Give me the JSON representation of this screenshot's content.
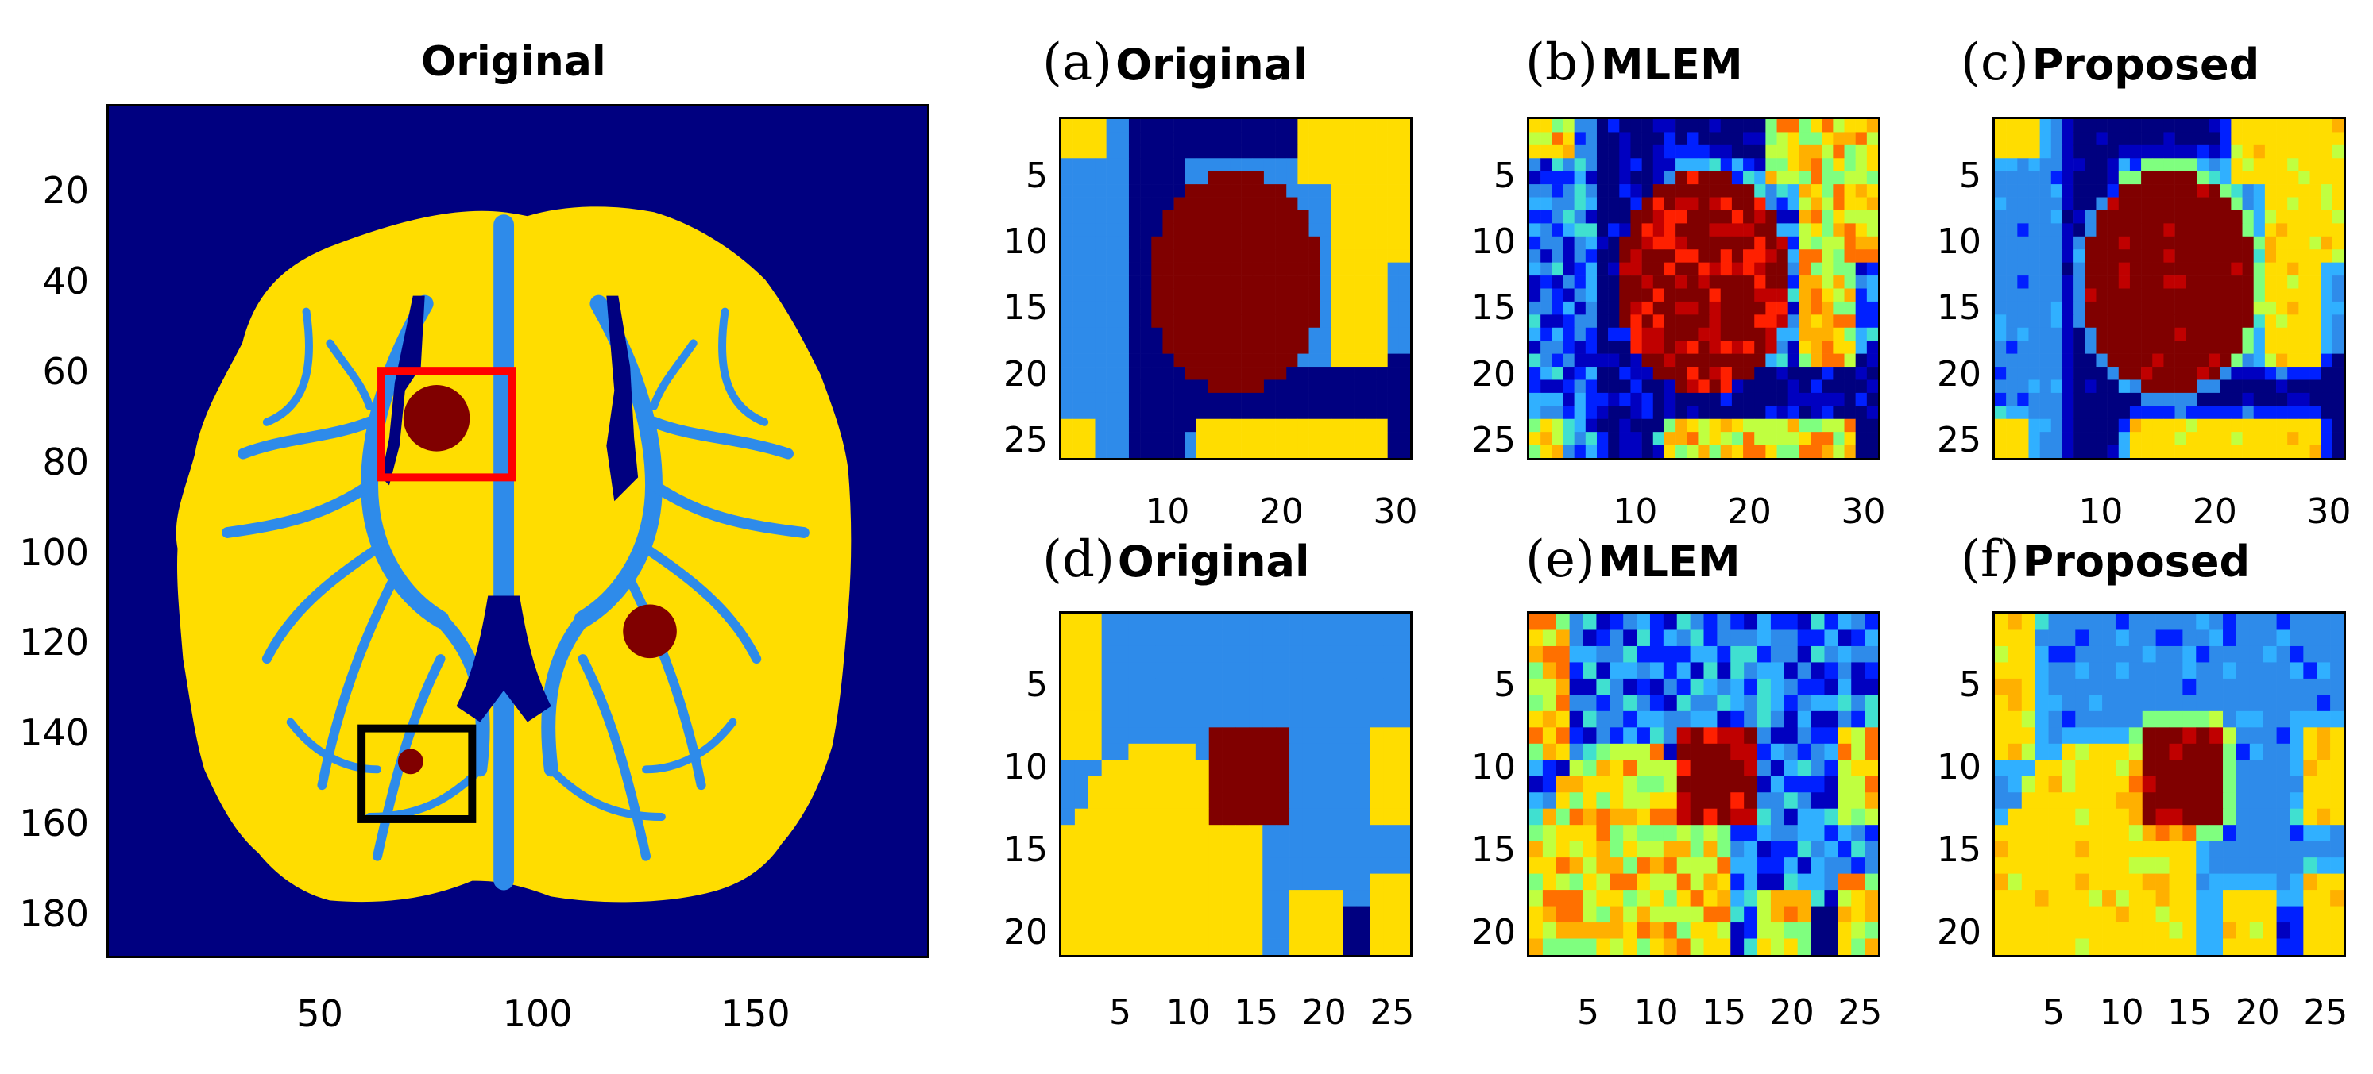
{
  "colors": {
    "background": "#000080",
    "csf": "#2E8BEA",
    "gray_matter": "#FFDD00",
    "lesion": "#800000",
    "roi_red": "#FF0000",
    "roi_black": "#000000"
  },
  "main": {
    "title": "Original",
    "yticks": [
      "20",
      "40",
      "60",
      "80",
      "100",
      "120",
      "140",
      "160",
      "180"
    ],
    "xticks": [
      "50",
      "100",
      "150"
    ]
  },
  "panels": [
    {
      "tag": "(a)",
      "title": "Original",
      "row": "top"
    },
    {
      "tag": "(b)",
      "title": "MLEM",
      "row": "top"
    },
    {
      "tag": "(c)",
      "title": "Proposed",
      "row": "top"
    },
    {
      "tag": "(d)",
      "title": "Original",
      "row": "bottom"
    },
    {
      "tag": "(e)",
      "title": "MLEM",
      "row": "bottom"
    },
    {
      "tag": "(f)",
      "title": "Proposed",
      "row": "bottom"
    }
  ],
  "top_row": {
    "yticks": [
      "5",
      "10",
      "15",
      "20",
      "25"
    ],
    "xticks": [
      "10",
      "20",
      "30"
    ]
  },
  "bottom_row": {
    "yticks": [
      "5",
      "10",
      "15",
      "20"
    ],
    "xticks": [
      "5",
      "10",
      "15",
      "20",
      "25"
    ]
  },
  "chart_data": {
    "type": "heatmap",
    "main_image": {
      "title": "Original",
      "x_range": [
        1,
        190
      ],
      "y_range": [
        1,
        190
      ],
      "xticks": [
        50,
        100,
        150
      ],
      "yticks": [
        20,
        40,
        60,
        80,
        100,
        120,
        140,
        160,
        180
      ],
      "roi_red": {
        "x_range": [
          65,
          95
        ],
        "y_range": [
          60,
          85
        ]
      },
      "roi_black": {
        "x_range": [
          60,
          85
        ],
        "y_range": [
          140,
          161
        ]
      },
      "lesions": [
        {
          "x": 78,
          "y": 72,
          "r": 8
        },
        {
          "x": 125,
          "y": 115,
          "r": 6
        },
        {
          "x": 72,
          "y": 148,
          "r": 3
        }
      ]
    },
    "crops": [
      {
        "id": "a",
        "label": "Original",
        "source": "red ROI",
        "x_range": [
          1,
          31
        ],
        "y_range": [
          1,
          26
        ]
      },
      {
        "id": "b",
        "label": "MLEM",
        "source": "red ROI",
        "x_range": [
          1,
          31
        ],
        "y_range": [
          1,
          26
        ]
      },
      {
        "id": "c",
        "label": "Proposed",
        "source": "red ROI",
        "x_range": [
          1,
          31
        ],
        "y_range": [
          1,
          26
        ]
      },
      {
        "id": "d",
        "label": "Original",
        "source": "black ROI",
        "x_range": [
          1,
          26
        ],
        "y_range": [
          1,
          21
        ]
      },
      {
        "id": "e",
        "label": "MLEM",
        "source": "black ROI",
        "x_range": [
          1,
          26
        ],
        "y_range": [
          1,
          21
        ]
      },
      {
        "id": "f",
        "label": "Proposed",
        "source": "black ROI",
        "x_range": [
          1,
          26
        ],
        "y_range": [
          1,
          21
        ]
      }
    ]
  }
}
